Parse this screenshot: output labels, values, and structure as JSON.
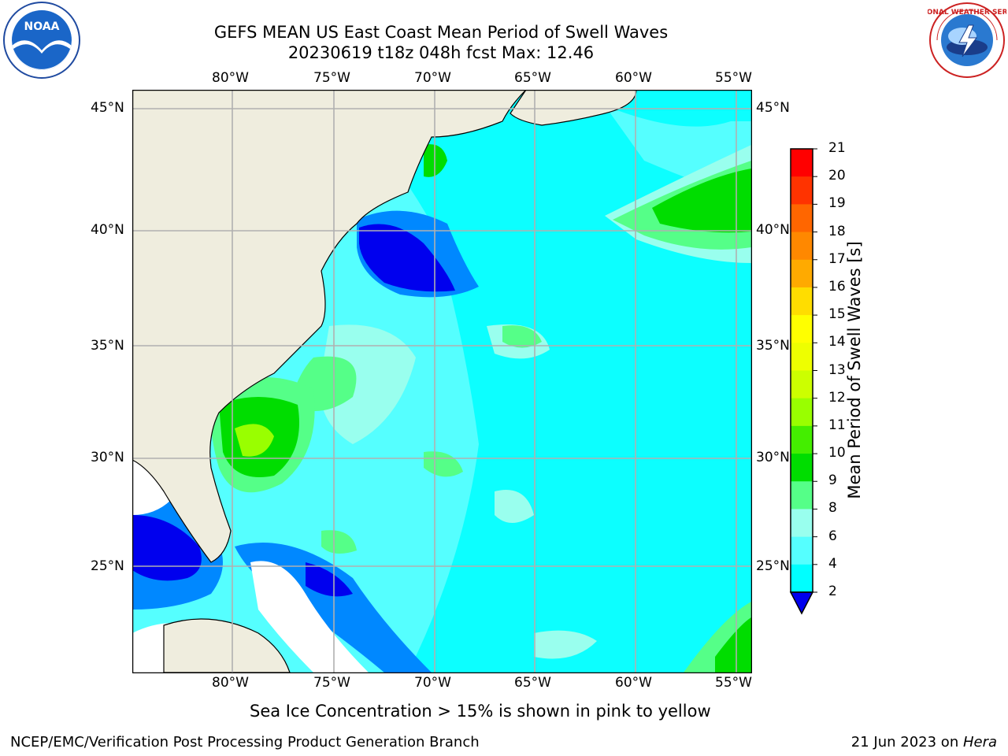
{
  "title": {
    "line1": "GEFS MEAN US East Coast Mean Period of Swell Waves",
    "line2": "20230619 t18z 048h fcst   Max: 12.46"
  },
  "logos": {
    "noaa_text": "NOAA",
    "nws_text": "NATIONAL WEATHER SERVICE"
  },
  "map": {
    "lon_labels": [
      "80°W",
      "75°W",
      "70°W",
      "65°W",
      "60°W",
      "55°W"
    ],
    "lat_labels": [
      "45°N",
      "40°N",
      "35°N",
      "30°N",
      "25°N"
    ],
    "land_color": "#efedde",
    "grid_color": "#b0b0b0"
  },
  "colorbar": {
    "label": "Mean Period of Swell Waves [s]",
    "ticks": [
      "21",
      "20",
      "19",
      "18",
      "17",
      "16",
      "15",
      "14",
      "13",
      "12",
      "11",
      "10",
      "9",
      "8",
      "6",
      "4",
      "2"
    ],
    "colors": [
      "#ff0000",
      "#ff3300",
      "#ff6600",
      "#ff8800",
      "#ffaa00",
      "#ffdd00",
      "#ffff00",
      "#eeff00",
      "#ccff00",
      "#99ff00",
      "#44ee00",
      "#00dd00",
      "#55ff88",
      "#99ffee",
      "#55ffff",
      "#00ffff",
      "#0088ff"
    ],
    "under_color": "#0000ee"
  },
  "footer": {
    "ice_note": "Sea Ice Concentration > 15% is shown in pink to yellow",
    "left": "NCEP/EMC/Verification Post Processing Product Generation Branch",
    "date": "21 Jun 2023 on ",
    "host": "Hera"
  }
}
